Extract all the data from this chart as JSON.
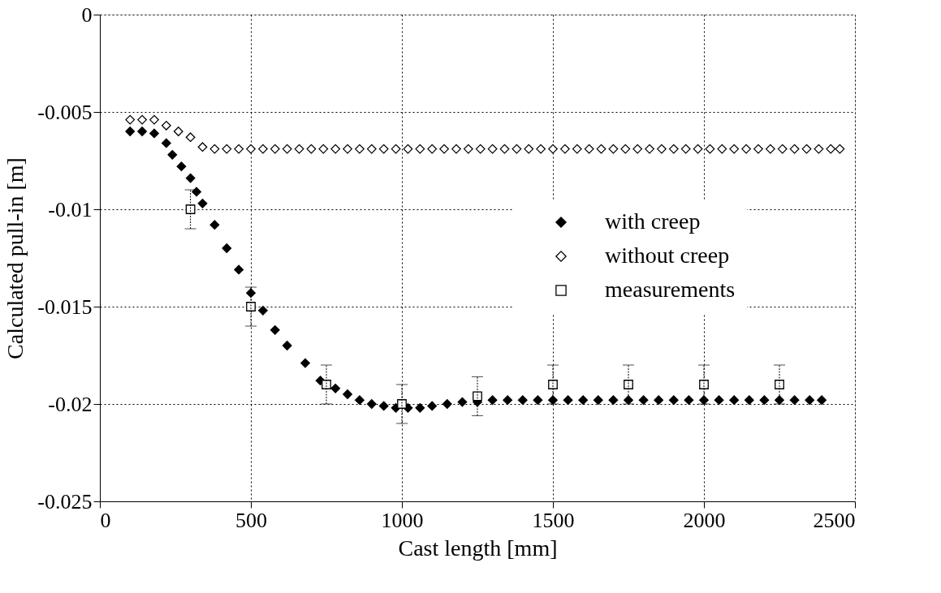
{
  "chart_data": {
    "type": "scatter",
    "xlabel": "Cast length [mm]",
    "ylabel": "Calculated pull-in [m]",
    "xlim": [
      0,
      2500
    ],
    "xticks": [
      0,
      500,
      1000,
      1500,
      2000,
      2500
    ],
    "ylim": [
      -0.025,
      0
    ],
    "yticks": [
      -0.025,
      -0.02,
      -0.015,
      -0.01,
      -0.005,
      0
    ],
    "grid": true,
    "legend": "right",
    "series": [
      {
        "name": "with creep",
        "color": "#000000",
        "marker": "diamond",
        "x": [
          100,
          140,
          180,
          220,
          240,
          270,
          300,
          320,
          340,
          380,
          420,
          460,
          500,
          540,
          580,
          620,
          680,
          730,
          780,
          820,
          860,
          900,
          940,
          980,
          1020,
          1060,
          1100,
          1150,
          1200,
          1250,
          1300,
          1350,
          1400,
          1450,
          1500,
          1550,
          1600,
          1650,
          1700,
          1750,
          1800,
          1850,
          1900,
          1950,
          2000,
          2050,
          2100,
          2150,
          2200,
          2250,
          2300,
          2350,
          2390
        ],
        "values": [
          -0.006,
          -0.006,
          -0.0061,
          -0.0066,
          -0.0072,
          -0.0078,
          -0.0084,
          -0.0091,
          -0.0097,
          -0.0108,
          -0.012,
          -0.0131,
          -0.0143,
          -0.0152,
          -0.0162,
          -0.017,
          -0.0179,
          -0.0188,
          -0.0192,
          -0.0195,
          -0.0198,
          -0.02,
          -0.0201,
          -0.0202,
          -0.0202,
          -0.0202,
          -0.0201,
          -0.02,
          -0.0199,
          -0.0199,
          -0.0198,
          -0.0198,
          -0.0198,
          -0.0198,
          -0.0198,
          -0.0198,
          -0.0198,
          -0.0198,
          -0.0198,
          -0.0198,
          -0.0198,
          -0.0198,
          -0.0198,
          -0.0198,
          -0.0198,
          -0.0198,
          -0.0198,
          -0.0198,
          -0.0198,
          -0.0198,
          -0.0198,
          -0.0198,
          -0.0198
        ]
      },
      {
        "name": "without creep",
        "color": "#000000",
        "marker": "diamond",
        "x": [
          100,
          140,
          180,
          220,
          260,
          300,
          340,
          380,
          420,
          460,
          500,
          540,
          580,
          620,
          660,
          700,
          740,
          780,
          820,
          860,
          900,
          940,
          980,
          1020,
          1060,
          1100,
          1140,
          1180,
          1220,
          1260,
          1300,
          1340,
          1380,
          1420,
          1460,
          1500,
          1540,
          1580,
          1620,
          1660,
          1700,
          1740,
          1780,
          1820,
          1860,
          1900,
          1940,
          1980,
          2020,
          2060,
          2100,
          2140,
          2180,
          2220,
          2260,
          2300,
          2340,
          2380,
          2420,
          2450
        ],
        "values": [
          -0.0054,
          -0.0054,
          -0.0054,
          -0.0057,
          -0.006,
          -0.0063,
          -0.0068,
          -0.0069,
          -0.0069,
          -0.0069,
          -0.0069,
          -0.0069,
          -0.0069,
          -0.0069,
          -0.0069,
          -0.0069,
          -0.0069,
          -0.0069,
          -0.0069,
          -0.0069,
          -0.0069,
          -0.0069,
          -0.0069,
          -0.0069,
          -0.0069,
          -0.0069,
          -0.0069,
          -0.0069,
          -0.0069,
          -0.0069,
          -0.0069,
          -0.0069,
          -0.0069,
          -0.0069,
          -0.0069,
          -0.0069,
          -0.0069,
          -0.0069,
          -0.0069,
          -0.0069,
          -0.0069,
          -0.0069,
          -0.0069,
          -0.0069,
          -0.0069,
          -0.0069,
          -0.0069,
          -0.0069,
          -0.0069,
          -0.0069,
          -0.0069,
          -0.0069,
          -0.0069,
          -0.0069,
          -0.0069,
          -0.0069,
          -0.0069,
          -0.0069,
          -0.0069,
          -0.0069
        ]
      },
      {
        "name": "measurements",
        "color": "#000000",
        "marker": "square",
        "x": [
          300,
          500,
          750,
          1000,
          1250,
          1500,
          1750,
          2000,
          2250
        ],
        "values": [
          -0.01,
          -0.015,
          -0.019,
          -0.02,
          -0.0196,
          -0.019,
          -0.019,
          -0.019,
          -0.019
        ],
        "errors": [
          0.001,
          0.001,
          0.001,
          0.001,
          0.001,
          0.001,
          0.001,
          0.001,
          0.001
        ]
      }
    ]
  }
}
